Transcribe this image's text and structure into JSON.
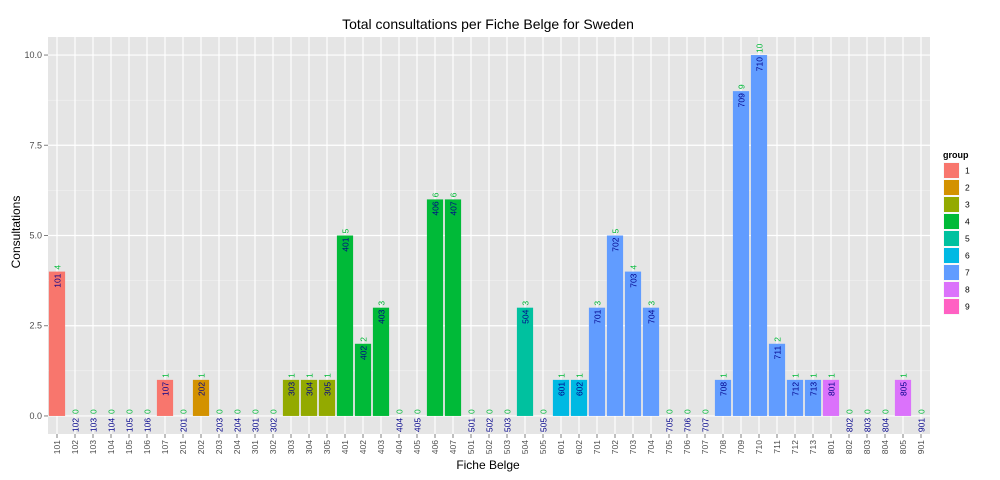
{
  "chart_data": {
    "type": "bar",
    "title": "Total consultations per Fiche Belge for Sweden",
    "xlabel": "Fiche Belge",
    "ylabel": "Consultations",
    "ylim": [
      -0.5,
      10.5
    ],
    "yticks": [
      0.0,
      2.5,
      5.0,
      7.5,
      10.0
    ],
    "ytick_labels": [
      "0.0",
      "2.5",
      "5.0",
      "7.5",
      "10.0"
    ],
    "grid": true,
    "legend_title": "group",
    "legend_position": "right",
    "groups": [
      {
        "name": "1",
        "color": "#F8766D"
      },
      {
        "name": "2",
        "color": "#D39200"
      },
      {
        "name": "3",
        "color": "#93AA00"
      },
      {
        "name": "4",
        "color": "#00BA38"
      },
      {
        "name": "5",
        "color": "#00C19F"
      },
      {
        "name": "6",
        "color": "#00B9E3"
      },
      {
        "name": "7",
        "color": "#619CFF"
      },
      {
        "name": "8",
        "color": "#DB72FB"
      },
      {
        "name": "9",
        "color": "#FF61C3"
      }
    ],
    "categories": [
      "101",
      "102",
      "103",
      "104",
      "105",
      "106",
      "107",
      "201",
      "202",
      "203",
      "204",
      "301",
      "302",
      "303",
      "304",
      "305",
      "401",
      "402",
      "403",
      "404",
      "405",
      "406",
      "407",
      "501",
      "502",
      "503",
      "504",
      "505",
      "601",
      "602",
      "701",
      "702",
      "703",
      "704",
      "705",
      "706",
      "707",
      "708",
      "709",
      "710",
      "711",
      "712",
      "713",
      "801",
      "802",
      "803",
      "804",
      "805",
      "901"
    ],
    "values": [
      4,
      0,
      0,
      0,
      0,
      0,
      1,
      0,
      1,
      0,
      0,
      0,
      0,
      1,
      1,
      1,
      5,
      2,
      3,
      0,
      0,
      6,
      6,
      0,
      0,
      0,
      3,
      0,
      1,
      1,
      3,
      5,
      4,
      3,
      0,
      0,
      0,
      1,
      9,
      10,
      2,
      1,
      1,
      1,
      0,
      0,
      0,
      1,
      0
    ],
    "group_of_category": [
      "1",
      "1",
      "1",
      "1",
      "1",
      "1",
      "1",
      "2",
      "2",
      "2",
      "2",
      "3",
      "3",
      "3",
      "3",
      "3",
      "4",
      "4",
      "4",
      "4",
      "4",
      "4",
      "4",
      "5",
      "5",
      "5",
      "5",
      "5",
      "6",
      "6",
      "7",
      "7",
      "7",
      "7",
      "7",
      "7",
      "7",
      "7",
      "7",
      "7",
      "7",
      "7",
      "7",
      "8",
      "8",
      "8",
      "8",
      "8",
      "9"
    ],
    "value_label_color": "#00BA38",
    "category_label_color": "#00008B"
  }
}
